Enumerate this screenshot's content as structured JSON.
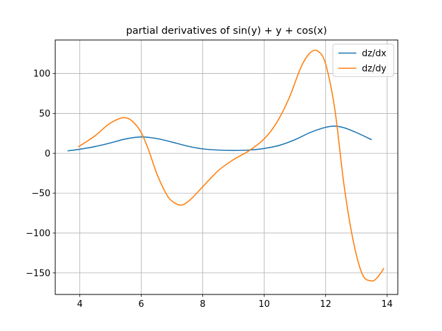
{
  "chart_data": {
    "type": "line",
    "title": "partial derivatives of sin(y) + y + cos(x)",
    "xlabel": "",
    "ylabel": "",
    "xlim": [
      3.2,
      14.35
    ],
    "ylim": [
      -177,
      142
    ],
    "xticks": [
      4,
      6,
      8,
      10,
      12,
      14
    ],
    "yticks": [
      -150,
      -100,
      -50,
      0,
      50,
      100
    ],
    "ytick_labels": [
      "−150",
      "−100",
      "−50",
      "0",
      "50",
      "100"
    ],
    "grid": true,
    "legend_position": "top-right",
    "series": [
      {
        "name": "dz/dx",
        "color": "#1f77b4",
        "x": [
          3.6,
          4.0,
          4.5,
          5.0,
          5.5,
          6.0,
          6.5,
          7.0,
          7.5,
          8.0,
          8.5,
          9.0,
          9.5,
          10.0,
          10.5,
          11.0,
          11.5,
          12.0,
          12.3,
          12.6,
          13.0,
          13.5
        ],
        "y": [
          3,
          5,
          8.5,
          13,
          18,
          20.5,
          18.5,
          14,
          9,
          5.5,
          4,
          3.5,
          4,
          6,
          10,
          17,
          26,
          32.5,
          34,
          32,
          26,
          17
        ]
      },
      {
        "name": "dz/dy",
        "color": "#ff7f0e",
        "x": [
          3.95,
          4.5,
          5.0,
          5.5,
          5.9,
          6.2,
          6.5,
          6.8,
          7.0,
          7.3,
          7.6,
          8.0,
          8.5,
          9.0,
          9.5,
          10.0,
          10.4,
          10.8,
          11.2,
          11.5,
          11.75,
          12.0,
          12.3,
          12.6,
          12.9,
          13.2,
          13.5,
          13.7,
          13.9
        ],
        "y": [
          8,
          22,
          38,
          44.5,
          32,
          8,
          -25,
          -50,
          -60,
          -65,
          -58,
          -42,
          -22,
          -8,
          3,
          18,
          38,
          68,
          108,
          126,
          128,
          112,
          55,
          -40,
          -110,
          -152,
          -160,
          -155,
          -144
        ]
      }
    ]
  }
}
